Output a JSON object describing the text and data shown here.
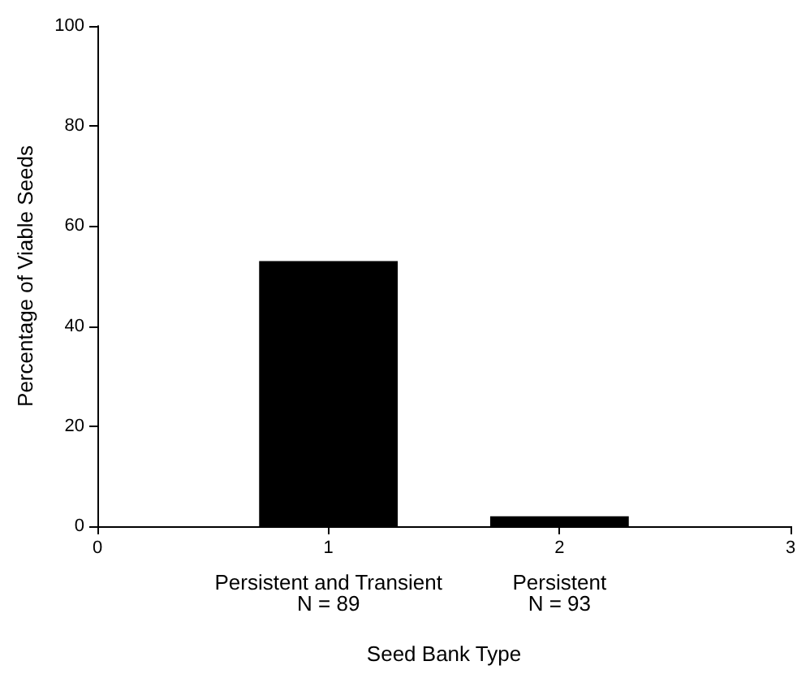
{
  "chart_data": {
    "type": "bar",
    "x": [
      1,
      2
    ],
    "values": [
      53,
      2
    ],
    "color": "#000000",
    "xlim": [
      0,
      3
    ],
    "xticks": [
      0,
      1,
      2,
      3
    ],
    "ylim": [
      0,
      100
    ],
    "yticks": [
      0,
      20,
      40,
      60,
      80,
      100
    ],
    "xlabel": "Seed Bank Type",
    "ylabel": "Percentage of Viable Seeds",
    "grid": false,
    "annotations": [
      "Persistent and Transient\nN = 89",
      "Persistent\nN = 93"
    ]
  }
}
